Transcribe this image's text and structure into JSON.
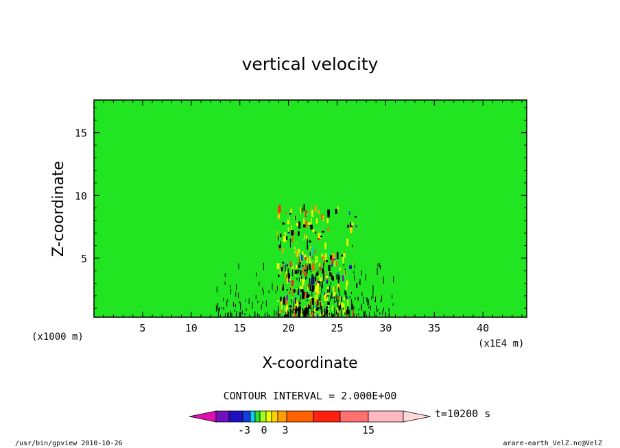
{
  "chart_data": {
    "type": "heatmap",
    "title": "vertical velocity",
    "xlabel": "X-coordinate",
    "ylabel": "Z-coordinate",
    "x_unit_left": "(x1000 m)",
    "x_unit_right": "(x1E4 m)",
    "xlim": [
      0,
      44.5
    ],
    "ylim": [
      0.3,
      17.6
    ],
    "x_ticks": [
      5,
      10,
      15,
      20,
      25,
      30,
      35,
      40
    ],
    "y_ticks": [
      5,
      10,
      15
    ],
    "contour_interval_label": "CONTOUR INTERVAL = 2.000E+00",
    "time_label": "t=10200 s",
    "colorbar": {
      "levels_shown": [
        -3,
        0,
        3,
        15
      ],
      "colors": [
        "#e010b0",
        "#7010c0",
        "#2010c0",
        "#1040e0",
        "#10c8f0",
        "#30e030",
        "#a0ff20",
        "#f0ff00",
        "#ffd000",
        "#ffa000",
        "#ff6000",
        "#ff2010",
        "#ff7070",
        "#ffb8c0",
        "#ffd8d8"
      ]
    },
    "colors": {
      "positive_weak": "#f0ff00",
      "negative_weak": "#22e522",
      "strong_positive": "#ff5a00",
      "strong_negative": "#1030c0"
    }
  },
  "footer": {
    "left": "/usr/bin/gpview   2010-10-26",
    "right": "arare-earth_VelZ.nc@VelZ"
  }
}
